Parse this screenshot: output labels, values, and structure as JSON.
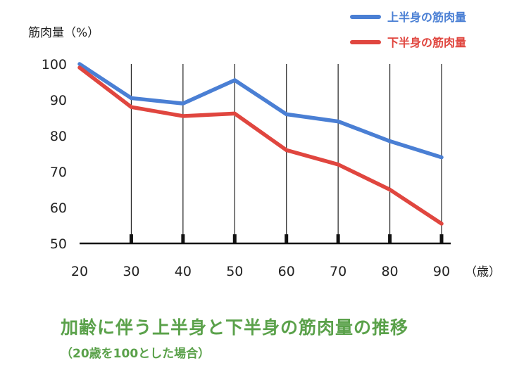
{
  "chart_data": {
    "type": "line",
    "x": [
      20,
      30,
      40,
      50,
      60,
      70,
      80,
      90
    ],
    "y_unit_label": "筋肉量（%）",
    "x_unit_label": "（歳）",
    "ylim": [
      50,
      100
    ],
    "yticks": [
      100,
      90,
      80,
      70,
      60,
      50
    ],
    "xlim": [
      20,
      90
    ],
    "grid": "vertical",
    "legend_position": "top-right",
    "series": [
      {
        "name": "上半身の筋肉量",
        "color": "#4a7fd4",
        "values": [
          100,
          90.5,
          89,
          95.5,
          86,
          84,
          78.5,
          74
        ]
      },
      {
        "name": "下半身の筋肉量",
        "color": "#e0463f",
        "values": [
          99,
          88,
          85.5,
          86.2,
          76,
          72,
          65,
          55.5
        ]
      }
    ],
    "title": "加齢に伴う上半身と下半身の筋肉量の推移",
    "subtitle": "（20歳を100とした場合）"
  }
}
